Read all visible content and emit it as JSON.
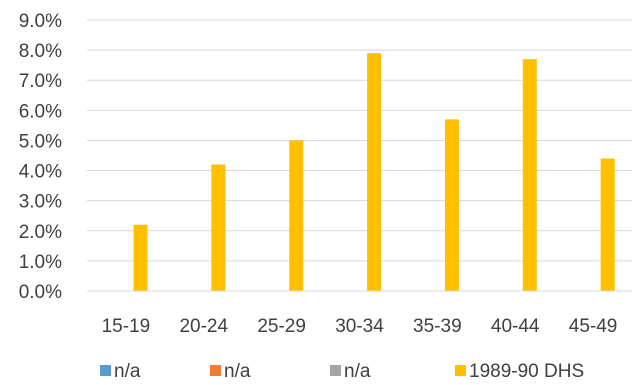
{
  "chart_data": {
    "type": "bar",
    "categories": [
      "15-19",
      "20-24",
      "25-29",
      "30-34",
      "35-39",
      "40-44",
      "45-49"
    ],
    "series": [
      {
        "name": "n/a",
        "color": "#5B9BD5",
        "values": [
          null,
          null,
          null,
          null,
          null,
          null,
          null
        ]
      },
      {
        "name": "n/a",
        "color": "#ED7D31",
        "values": [
          null,
          null,
          null,
          null,
          null,
          null,
          null
        ]
      },
      {
        "name": "n/a",
        "color": "#A5A5A5",
        "values": [
          null,
          null,
          null,
          null,
          null,
          null,
          null
        ]
      },
      {
        "name": "1989-90 DHS",
        "color": "#FFC000",
        "values": [
          2.2,
          4.2,
          5.0,
          7.9,
          5.7,
          7.7,
          4.4
        ]
      }
    ],
    "ylim": [
      0,
      9
    ],
    "yticks": [
      "0.0%",
      "1.0%",
      "2.0%",
      "3.0%",
      "4.0%",
      "5.0%",
      "6.0%",
      "7.0%",
      "8.0%",
      "9.0%"
    ],
    "y_unit": "%",
    "grid": true,
    "legend_position": "bottom",
    "title": "",
    "xlabel": "",
    "ylabel": ""
  }
}
